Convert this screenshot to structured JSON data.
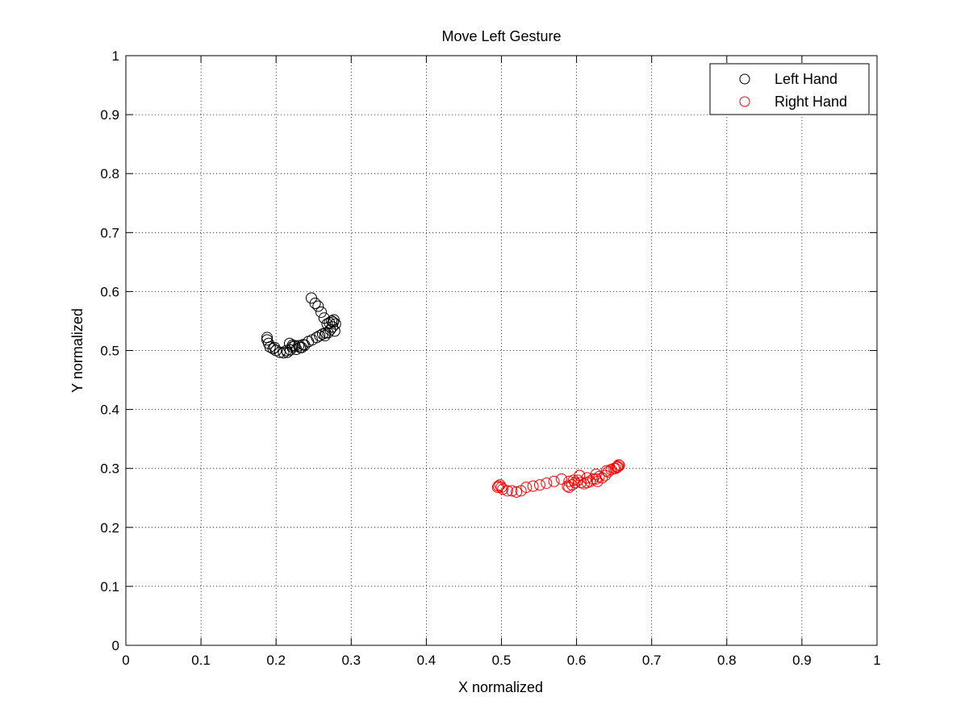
{
  "chart_data": {
    "type": "scatter",
    "title": "Move Left Gesture",
    "xlabel": "X normalized",
    "ylabel": "Y normalized",
    "xlim": [
      0,
      1
    ],
    "ylim": [
      0,
      1
    ],
    "xticks": [
      0,
      0.1,
      0.2,
      0.3,
      0.4,
      0.5,
      0.6,
      0.7,
      0.8,
      0.9,
      1
    ],
    "yticks": [
      0,
      0.1,
      0.2,
      0.3,
      0.4,
      0.5,
      0.6,
      0.7,
      0.8,
      0.9,
      1
    ],
    "xtick_labels": [
      "0",
      "0.1",
      "0.2",
      "0.3",
      "0.4",
      "0.5",
      "0.6",
      "0.7",
      "0.8",
      "0.9",
      "1"
    ],
    "ytick_labels": [
      "0",
      "0.1",
      "0.2",
      "0.3",
      "0.4",
      "0.5",
      "0.6",
      "0.7",
      "0.8",
      "0.9",
      "1"
    ],
    "grid": true,
    "legend_position": "top-right",
    "series": [
      {
        "name": "Left Hand",
        "color": "#000000",
        "marker": "circle-open",
        "x": [
          0.188,
          0.19,
          0.192,
          0.196,
          0.2,
          0.205,
          0.21,
          0.215,
          0.219,
          0.222,
          0.225,
          0.23,
          0.234,
          0.238,
          0.243,
          0.248,
          0.254,
          0.258,
          0.262,
          0.266,
          0.269,
          0.272,
          0.275,
          0.278,
          0.279,
          0.277,
          0.274,
          0.271,
          0.268,
          0.264,
          0.26,
          0.256,
          0.252,
          0.247,
          0.218,
          0.222,
          0.227,
          0.232,
          0.236,
          0.214,
          0.188,
          0.198,
          0.265,
          0.276
        ],
        "y": [
          0.522,
          0.512,
          0.506,
          0.503,
          0.5,
          0.497,
          0.496,
          0.497,
          0.501,
          0.506,
          0.508,
          0.508,
          0.505,
          0.509,
          0.515,
          0.518,
          0.522,
          0.525,
          0.528,
          0.53,
          0.53,
          0.535,
          0.54,
          0.533,
          0.545,
          0.552,
          0.55,
          0.547,
          0.545,
          0.555,
          0.565,
          0.575,
          0.58,
          0.589,
          0.512,
          0.509,
          0.502,
          0.505,
          0.51,
          0.5,
          0.518,
          0.505,
          0.525,
          0.548
        ]
      },
      {
        "name": "Right Hand",
        "color": "#ff0000",
        "marker": "circle-open",
        "x": [
          0.495,
          0.498,
          0.502,
          0.508,
          0.514,
          0.52,
          0.526,
          0.533,
          0.542,
          0.551,
          0.56,
          0.57,
          0.58,
          0.588,
          0.59,
          0.594,
          0.598,
          0.602,
          0.606,
          0.61,
          0.614,
          0.618,
          0.622,
          0.626,
          0.63,
          0.634,
          0.638,
          0.642,
          0.646,
          0.65,
          0.654,
          0.657,
          0.655,
          0.652,
          0.64,
          0.626,
          0.614,
          0.604,
          0.596,
          0.59,
          0.496,
          0.5,
          0.604,
          0.628,
          0.656
        ],
        "y": [
          0.268,
          0.272,
          0.265,
          0.262,
          0.262,
          0.26,
          0.262,
          0.268,
          0.27,
          0.272,
          0.275,
          0.278,
          0.282,
          0.27,
          0.268,
          0.272,
          0.276,
          0.28,
          0.276,
          0.274,
          0.276,
          0.278,
          0.282,
          0.282,
          0.286,
          0.284,
          0.288,
          0.294,
          0.298,
          0.3,
          0.302,
          0.305,
          0.303,
          0.3,
          0.296,
          0.29,
          0.284,
          0.288,
          0.28,
          0.278,
          0.27,
          0.268,
          0.288,
          0.278,
          0.306
        ]
      }
    ]
  }
}
